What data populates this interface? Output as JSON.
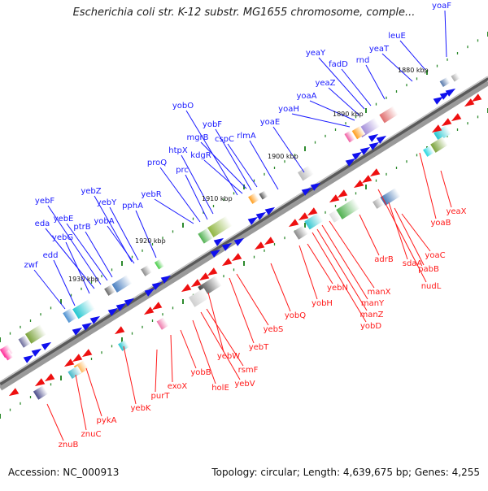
{
  "title": "Escherichia coli str. K-12 substr. MG1655 chromosome, comple...",
  "footer": {
    "accession": "Accession: NC_000913",
    "summary": "Topology: circular; Length: 4,639,675 bp; Genes: 4,255"
  },
  "colors": {
    "forward_label": "#1a1aff",
    "reverse_label": "#ff1a1a",
    "backbone": "#808080",
    "tick": "#2e8b2e"
  },
  "ruler": [
    "1880 kbp",
    "1890 kbp",
    "1900 kbp",
    "1910 kbp",
    "1920 kbp",
    "1930 kbp"
  ],
  "forward_genes": [
    "yoaF",
    "leuE",
    "yeaT",
    "rnd",
    "fadD",
    "yeaY",
    "yeaZ",
    "yoaA",
    "yoaH",
    "yoaE",
    "rlmA",
    "cspC",
    "yobF",
    "mgrB",
    "kdgR",
    "yobO",
    "htpX",
    "prc",
    "proQ",
    "yebR",
    "pphA",
    "yobA",
    "yebY",
    "yebZ",
    "ptrB",
    "yebE",
    "yebF",
    "eda",
    "yebG",
    "edd",
    "zwf"
  ],
  "reverse_genes": [
    "yeaX",
    "yoaB",
    "yoaC",
    "pabB",
    "sdaA",
    "nudL",
    "adrB",
    "manX",
    "manY",
    "manZ",
    "yobD",
    "yebN",
    "yobH",
    "yobQ",
    "yebS",
    "yebT",
    "yebW",
    "rsmF",
    "yebV",
    "yobB",
    "holE",
    "exoX",
    "purT",
    "yebK",
    "pykA",
    "znuC",
    "znuB"
  ]
}
